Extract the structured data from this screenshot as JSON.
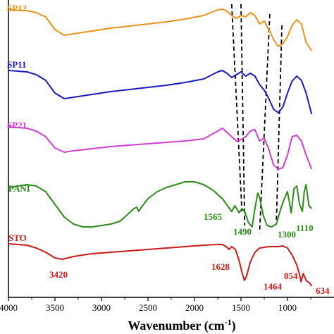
{
  "chart_data": {
    "type": "line",
    "title": "",
    "xlabel": "Wavenumber (cm",
    "xlabel_sup": "-1",
    "xlabel_close": ")",
    "xlim": [
      4000,
      500
    ],
    "x_reversed": true,
    "y_ticks": false,
    "grid": false,
    "legend": "none",
    "x_ticks": [
      "4000",
      "3500",
      "3000",
      "2500",
      "2000",
      "1500",
      "1000"
    ],
    "x_tick_values": [
      4000,
      3500,
      3000,
      2500,
      2000,
      1500,
      1000
    ],
    "series": [
      {
        "name": "SP12",
        "color": "#E8931A",
        "points": [
          [
            4000,
            14
          ],
          [
            3800,
            15
          ],
          [
            3700,
            18
          ],
          [
            3600,
            24
          ],
          [
            3500,
            42
          ],
          [
            3400,
            50
          ],
          [
            3300,
            48
          ],
          [
            3100,
            44
          ],
          [
            2900,
            40
          ],
          [
            2700,
            37
          ],
          [
            2500,
            34
          ],
          [
            2300,
            31
          ],
          [
            2100,
            27
          ],
          [
            1900,
            22
          ],
          [
            1750,
            14
          ],
          [
            1700,
            13
          ],
          [
            1650,
            16
          ],
          [
            1600,
            22
          ],
          [
            1550,
            26
          ],
          [
            1500,
            22
          ],
          [
            1450,
            24
          ],
          [
            1400,
            18
          ],
          [
            1350,
            22
          ],
          [
            1300,
            34
          ],
          [
            1250,
            30
          ],
          [
            1200,
            42
          ],
          [
            1150,
            56
          ],
          [
            1100,
            66
          ],
          [
            1050,
            62
          ],
          [
            1000,
            52
          ],
          [
            950,
            36
          ],
          [
            900,
            28
          ],
          [
            850,
            34
          ],
          [
            800,
            60
          ],
          [
            740,
            72
          ]
        ]
      },
      {
        "name": "SP11",
        "color": "#1A1ABF",
        "points": [
          [
            4000,
            100
          ],
          [
            3800,
            102
          ],
          [
            3700,
            106
          ],
          [
            3600,
            114
          ],
          [
            3500,
            132
          ],
          [
            3400,
            140
          ],
          [
            3300,
            138
          ],
          [
            3100,
            134
          ],
          [
            2900,
            130
          ],
          [
            2700,
            127
          ],
          [
            2500,
            124
          ],
          [
            2300,
            121
          ],
          [
            2100,
            117
          ],
          [
            1900,
            112
          ],
          [
            1750,
            102
          ],
          [
            1700,
            100
          ],
          [
            1650,
            104
          ],
          [
            1600,
            110
          ],
          [
            1550,
            106
          ],
          [
            1500,
            102
          ],
          [
            1450,
            108
          ],
          [
            1400,
            104
          ],
          [
            1350,
            108
          ],
          [
            1300,
            120
          ],
          [
            1250,
            128
          ],
          [
            1200,
            140
          ],
          [
            1150,
            155
          ],
          [
            1100,
            160
          ],
          [
            1050,
            152
          ],
          [
            1000,
            132
          ],
          [
            950,
            115
          ],
          [
            900,
            108
          ],
          [
            850,
            114
          ],
          [
            800,
            132
          ],
          [
            740,
            162
          ]
        ]
      },
      {
        "name": "SP21",
        "color": "#D03ED0",
        "points": [
          [
            4000,
            180
          ],
          [
            3800,
            182
          ],
          [
            3700,
            186
          ],
          [
            3600,
            194
          ],
          [
            3500,
            210
          ],
          [
            3400,
            216
          ],
          [
            3300,
            214
          ],
          [
            3100,
            211
          ],
          [
            2900,
            208
          ],
          [
            2700,
            206
          ],
          [
            2500,
            204
          ],
          [
            2300,
            202
          ],
          [
            2100,
            200
          ],
          [
            1900,
            197
          ],
          [
            1750,
            186
          ],
          [
            1700,
            182
          ],
          [
            1650,
            188
          ],
          [
            1600,
            194
          ],
          [
            1550,
            200
          ],
          [
            1500,
            198
          ],
          [
            1450,
            194
          ],
          [
            1400,
            186
          ],
          [
            1350,
            184
          ],
          [
            1300,
            200
          ],
          [
            1250,
            196
          ],
          [
            1200,
            212
          ],
          [
            1150,
            234
          ],
          [
            1100,
            240
          ],
          [
            1050,
            238
          ],
          [
            1000,
            220
          ],
          [
            950,
            194
          ],
          [
            900,
            192
          ],
          [
            850,
            200
          ],
          [
            800,
            220
          ],
          [
            740,
            240
          ]
        ]
      },
      {
        "name": "PANI",
        "color": "#2E8B1A",
        "points": [
          [
            4000,
            266
          ],
          [
            3800,
            262
          ],
          [
            3700,
            264
          ],
          [
            3600,
            272
          ],
          [
            3500,
            290
          ],
          [
            3400,
            308
          ],
          [
            3300,
            318
          ],
          [
            3200,
            322
          ],
          [
            3100,
            322
          ],
          [
            3000,
            320
          ],
          [
            2900,
            318
          ],
          [
            2800,
            314
          ],
          [
            2700,
            302
          ],
          [
            2650,
            296
          ],
          [
            2620,
            294
          ],
          [
            2600,
            300
          ],
          [
            2570,
            294
          ],
          [
            2500,
            282
          ],
          [
            2400,
            272
          ],
          [
            2300,
            266
          ],
          [
            2200,
            262
          ],
          [
            2100,
            258
          ],
          [
            2000,
            258
          ],
          [
            1900,
            262
          ],
          [
            1800,
            270
          ],
          [
            1700,
            282
          ],
          [
            1600,
            300
          ],
          [
            1565,
            292
          ],
          [
            1520,
            302
          ],
          [
            1490,
            296
          ],
          [
            1460,
            300
          ],
          [
            1420,
            316
          ],
          [
            1380,
            322
          ],
          [
            1350,
            296
          ],
          [
            1320,
            274
          ],
          [
            1300,
            280
          ],
          [
            1260,
            306
          ],
          [
            1220,
            320
          ],
          [
            1170,
            322
          ],
          [
            1120,
            318
          ],
          [
            1080,
            300
          ],
          [
            1040,
            284
          ],
          [
            1000,
            272
          ],
          [
            960,
            302
          ],
          [
            930,
            268
          ],
          [
            900,
            264
          ],
          [
            870,
            290
          ],
          [
            840,
            300
          ],
          [
            820,
            272
          ],
          [
            800,
            262
          ],
          [
            770,
            292
          ],
          [
            740,
            296
          ]
        ]
      },
      {
        "name": "STO",
        "color": "#CC1A1A",
        "points": [
          [
            4000,
            346
          ],
          [
            3800,
            348
          ],
          [
            3700,
            352
          ],
          [
            3600,
            358
          ],
          [
            3500,
            366
          ],
          [
            3420,
            368
          ],
          [
            3300,
            364
          ],
          [
            3100,
            360
          ],
          [
            2900,
            358
          ],
          [
            2700,
            356
          ],
          [
            2500,
            354
          ],
          [
            2300,
            352
          ],
          [
            2100,
            350
          ],
          [
            1900,
            348
          ],
          [
            1750,
            347
          ],
          [
            1700,
            347
          ],
          [
            1660,
            350
          ],
          [
            1628,
            354
          ],
          [
            1600,
            350
          ],
          [
            1560,
            354
          ],
          [
            1520,
            370
          ],
          [
            1490,
            386
          ],
          [
            1464,
            398
          ],
          [
            1440,
            392
          ],
          [
            1400,
            372
          ],
          [
            1350,
            358
          ],
          [
            1300,
            352
          ],
          [
            1250,
            351
          ],
          [
            1200,
            350
          ],
          [
            1150,
            350
          ],
          [
            1100,
            350
          ],
          [
            1050,
            349
          ],
          [
            1000,
            352
          ],
          [
            950,
            362
          ],
          [
            900,
            376
          ],
          [
            870,
            390
          ],
          [
            854,
            400
          ],
          [
            830,
            388
          ],
          [
            800,
            398
          ],
          [
            760,
            402
          ],
          [
            740,
            406
          ]
        ]
      }
    ],
    "series_labels": [
      {
        "text": "SP12",
        "color": "#E8931A"
      },
      {
        "text": "SP11",
        "color": "#1A1ABF"
      },
      {
        "text": "SP21",
        "color": "#D03ED0"
      },
      {
        "text": "PANI",
        "color": "#2E8B1A"
      },
      {
        "text": "STO",
        "color": "#CC1A1A"
      }
    ],
    "annotations": [
      {
        "text": "1565",
        "color": "#2E8B1A"
      },
      {
        "text": "1490",
        "color": "#2E8B1A"
      },
      {
        "text": "1300",
        "color": "#2E8B1A"
      },
      {
        "text": "1110",
        "color": "#2E8B1A"
      },
      {
        "text": "3420",
        "color": "#CC1A1A"
      },
      {
        "text": "1628",
        "color": "#CC1A1A"
      },
      {
        "text": "1464",
        "color": "#CC1A1A"
      },
      {
        "text": "854",
        "color": "#CC1A1A"
      },
      {
        "text": "634",
        "color": "#CC1A1A"
      }
    ],
    "guide_lines": [
      [
        1600,
        1490
      ],
      [
        1500,
        1460
      ],
      [
        1190,
        1300
      ],
      [
        1060,
        1120
      ]
    ]
  }
}
